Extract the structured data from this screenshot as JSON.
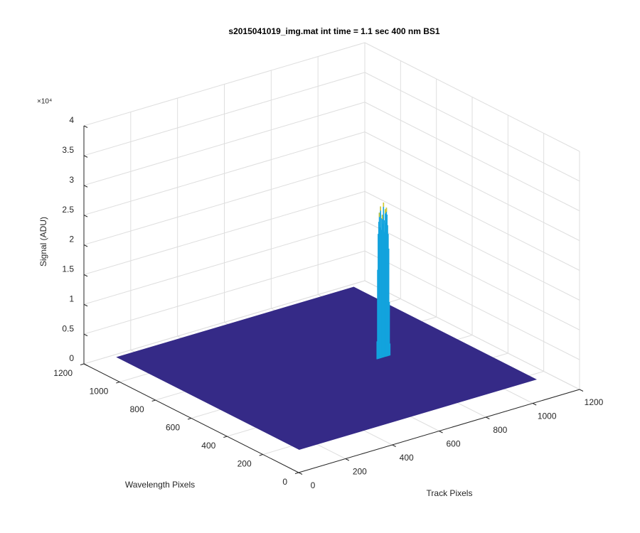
{
  "chart_data": {
    "type": "surface",
    "title": "s2015041019_img.mat int time = 1.1 sec  400 nm BS1",
    "xlabel": "Track Pixels",
    "ylabel": "Wavelength Pixels",
    "zlabel": "Signal (ADU)",
    "z_exponent": "×10⁴",
    "xlim": [
      0,
      1200
    ],
    "xticks": [
      0,
      200,
      400,
      600,
      800,
      1000,
      1200
    ],
    "ylim": [
      0,
      1200
    ],
    "yticks": [
      0,
      200,
      400,
      600,
      800,
      1000,
      1200
    ],
    "zlim": [
      0,
      40000
    ],
    "zticks": [
      0,
      {
        "value": 5000,
        "label": "0.5"
      },
      {
        "value": 10000,
        "label": "1"
      },
      {
        "value": 15000,
        "label": "1.5"
      },
      {
        "value": 20000,
        "label": "2"
      },
      {
        "value": 25000,
        "label": "2.5"
      },
      {
        "value": 30000,
        "label": "3"
      },
      {
        "value": 35000,
        "label": "3.5"
      },
      {
        "value": 40000,
        "label": "4"
      }
    ],
    "grid": true,
    "surface": {
      "x_range": [
        125,
        1136
      ],
      "y_range": [
        160,
        1178
      ],
      "base": 0,
      "color": "#352a87"
    },
    "peak": {
      "y": 628,
      "x": [
        815,
        817.5,
        820,
        822.5,
        825,
        827.5,
        830,
        832.5,
        835,
        837.5,
        840,
        842.5,
        845,
        847.5,
        850,
        852.5,
        855,
        857.5,
        860,
        862.5,
        865,
        867.5,
        870
      ],
      "values": [
        3000,
        15000,
        21000,
        23000,
        24500,
        22000,
        25500,
        23500,
        21500,
        24000,
        22500,
        26000,
        23000,
        21000,
        24800,
        22500,
        25000,
        23800,
        22000,
        20500,
        18000,
        9000,
        2000
      ],
      "color": "#13a3dd",
      "peak_color": "#d7ca2b"
    }
  }
}
